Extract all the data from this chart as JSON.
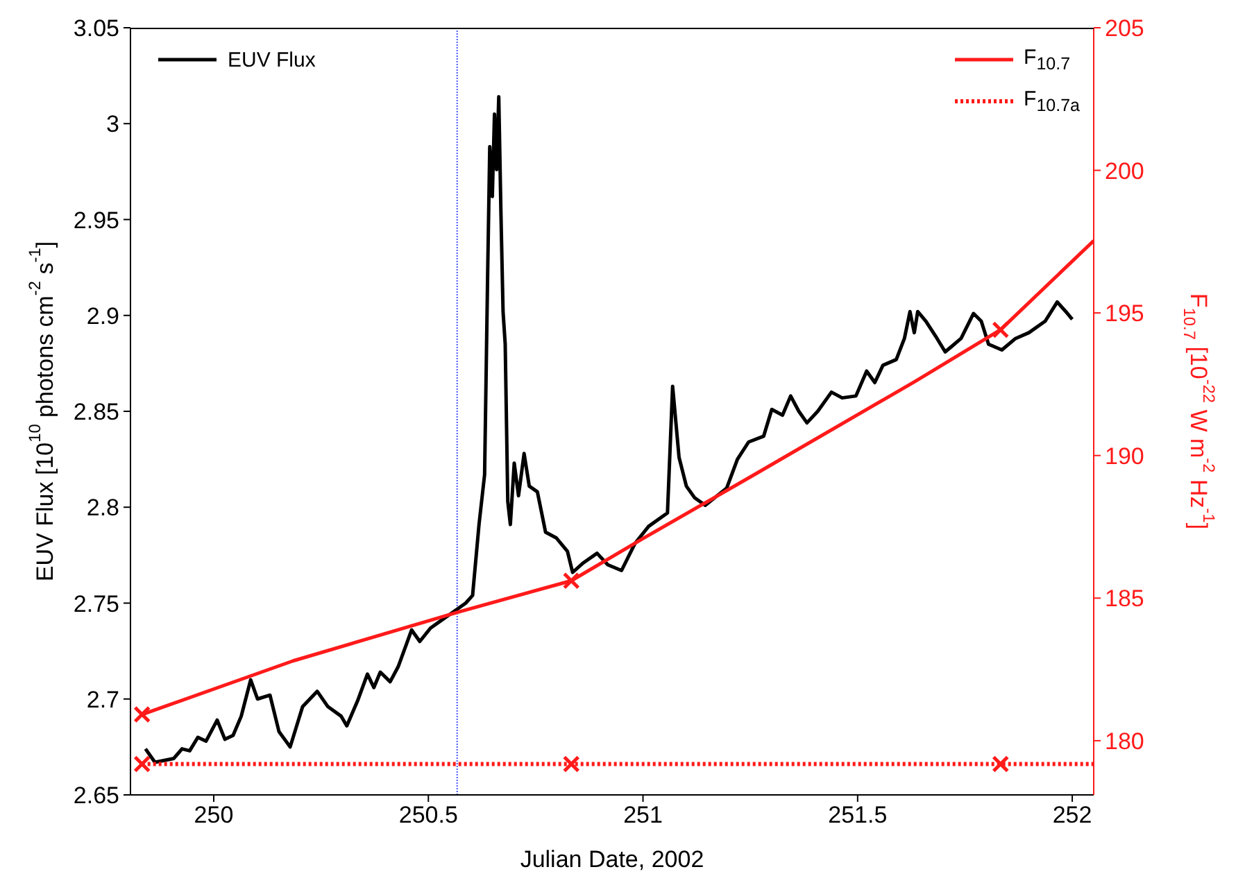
{
  "chart_data": {
    "type": "line",
    "xlabel": "Julian Date, 2002",
    "ylabel": "EUV Flux [10$^{10}$ photons cm$^{-2}$ s$^{-1}$]",
    "y2label": "F$_{10.7}$ [10$^{-22}$ W m$^{-2}$ Hz$^{-1}$]",
    "xlim": [
      249.806,
      252.05
    ],
    "xticks": [
      250,
      250.5,
      251,
      251.5,
      252
    ],
    "ylim": [
      2.65,
      3.05
    ],
    "yticks": [
      2.65,
      2.7,
      2.75,
      2.8,
      2.85,
      2.9,
      2.95,
      3,
      3.05
    ],
    "y2lim": [
      178.1,
      205
    ],
    "y2ticks": [
      180,
      185,
      190,
      195,
      200,
      205
    ],
    "legend": "top right",
    "ref_lines": [
      {
        "axis": "x",
        "value": 250.567,
        "color": "#4455ff",
        "line_style": "dotted"
      }
    ],
    "series": [
      {
        "name": "EUV Flux",
        "color": "#000000",
        "line_style": "solid",
        "x": [
          249.841,
          249.863,
          249.907,
          249.926,
          249.944,
          249.963,
          249.982,
          250.008,
          250.026,
          250.045,
          250.064,
          250.086,
          250.102,
          250.131,
          250.152,
          250.178,
          250.207,
          250.241,
          250.266,
          250.297,
          250.31,
          250.335,
          250.358,
          250.373,
          250.388,
          250.411,
          250.43,
          250.461,
          250.48,
          250.505,
          250.524,
          250.562,
          250.587,
          250.603,
          250.618,
          250.631,
          250.638,
          250.643,
          250.649,
          250.654,
          250.659,
          250.664,
          250.669,
          250.674,
          250.679,
          250.685,
          250.691,
          250.7,
          250.71,
          250.723,
          250.735,
          250.754,
          250.773,
          250.798,
          250.824,
          250.836,
          250.861,
          250.893,
          250.918,
          250.95,
          250.981,
          251.013,
          251.057,
          251.069,
          251.084,
          251.101,
          251.12,
          251.145,
          251.195,
          251.22,
          251.246,
          251.281,
          251.3,
          251.325,
          251.344,
          251.363,
          251.382,
          251.407,
          251.439,
          251.464,
          251.496,
          251.521,
          251.54,
          251.559,
          251.59,
          251.609,
          251.622,
          251.632,
          251.64,
          251.659,
          251.685,
          251.704,
          251.72,
          251.741,
          251.77,
          251.788,
          251.805,
          251.836,
          251.868,
          251.899,
          251.937,
          251.965,
          251.985,
          252.0
        ],
        "values": [
          2.674,
          2.667,
          2.669,
          2.674,
          2.673,
          2.68,
          2.678,
          2.689,
          2.679,
          2.681,
          2.691,
          2.71,
          2.7,
          2.702,
          2.683,
          2.675,
          2.696,
          2.704,
          2.696,
          2.691,
          2.686,
          2.699,
          2.713,
          2.706,
          2.714,
          2.709,
          2.717,
          2.736,
          2.73,
          2.737,
          2.74,
          2.746,
          2.75,
          2.754,
          2.791,
          2.817,
          2.92,
          2.988,
          2.962,
          3.005,
          2.976,
          3.014,
          2.954,
          2.902,
          2.885,
          2.803,
          2.791,
          2.823,
          2.806,
          2.828,
          2.811,
          2.808,
          2.787,
          2.784,
          2.777,
          2.766,
          2.771,
          2.776,
          2.77,
          2.767,
          2.781,
          2.79,
          2.797,
          2.863,
          2.826,
          2.811,
          2.805,
          2.801,
          2.81,
          2.825,
          2.834,
          2.837,
          2.851,
          2.848,
          2.858,
          2.85,
          2.844,
          2.85,
          2.86,
          2.857,
          2.858,
          2.871,
          2.865,
          2.874,
          2.877,
          2.888,
          2.902,
          2.891,
          2.902,
          2.897,
          2.888,
          2.881,
          2.884,
          2.888,
          2.901,
          2.897,
          2.885,
          2.882,
          2.888,
          2.891,
          2.897,
          2.907,
          2.902,
          2.898
        ]
      },
      {
        "name": "F$_{10.7}$",
        "color": "#ff1a1a",
        "line_style": "solid",
        "axis": "y2",
        "x": [
          249.833,
          250.185,
          250.567,
          250.833,
          251.0,
          251.256,
          251.634,
          251.833,
          252.05
        ],
        "values": [
          180.92,
          182.8,
          184.5,
          185.61,
          187.09,
          189.3,
          192.6,
          194.41,
          197.53
        ]
      },
      {
        "name": "F$_{10.7a}$",
        "color": "#ff1a1a",
        "line_style": "dotted",
        "axis": "y2",
        "x": [
          249.833,
          250.833,
          251.833,
          252.05
        ],
        "values": [
          179.18,
          179.18,
          179.18,
          179.18
        ]
      },
      {
        "color": "#ff1a1a",
        "type": "scatter",
        "marker": "cross",
        "axis": "y2",
        "x": [
          249.833,
          250.833,
          251.833
        ],
        "values": [
          180.92,
          185.61,
          194.41
        ]
      },
      {
        "color": "#ff1a1a",
        "type": "scatter",
        "marker": "cross",
        "axis": "y2",
        "x": [
          249.833,
          250.833,
          251.833
        ],
        "values": [
          179.18,
          179.18,
          179.18
        ]
      }
    ]
  }
}
